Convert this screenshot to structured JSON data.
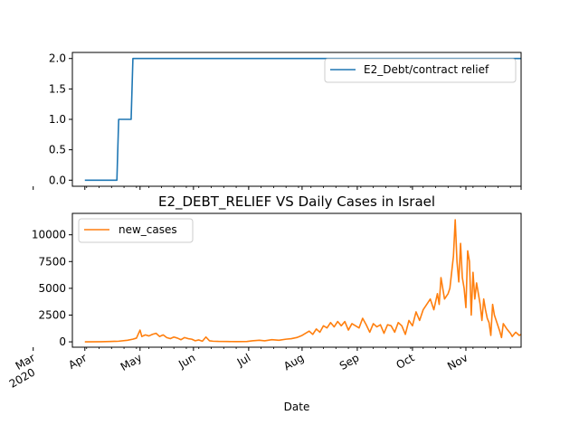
{
  "chart_data": [
    {
      "type": "line",
      "title": "",
      "xlabel": "",
      "ylabel": "",
      "ylim": [
        -0.1,
        2.1
      ],
      "yticks": [
        "0.0",
        "0.5",
        "1.0",
        "1.5",
        "2.0"
      ],
      "series": [
        {
          "name": "E2_Debt/contract relief",
          "color": "#1f77b4",
          "points": [
            [
              "2020-03-01",
              0
            ],
            [
              "2020-03-19",
              0
            ],
            [
              "2020-03-20",
              1
            ],
            [
              "2020-03-27",
              1
            ],
            [
              "2020-03-28",
              2
            ],
            [
              "2020-11-01",
              2
            ]
          ]
        }
      ],
      "legend_position": "top-right",
      "grid": false
    },
    {
      "type": "line",
      "title": "E2_DEBT_RELIEF VS Daily Cases in Israel",
      "xlabel": "Date",
      "ylabel": "",
      "ylim": [
        -500,
        12000
      ],
      "yticks": [
        "0",
        "2500",
        "5000",
        "7500",
        "10000"
      ],
      "xticks": [
        {
          "label": "Mar",
          "sub": "2020"
        },
        {
          "label": "Apr",
          "sub": ""
        },
        {
          "label": "May",
          "sub": ""
        },
        {
          "label": "Jun",
          "sub": ""
        },
        {
          "label": "Jul",
          "sub": ""
        },
        {
          "label": "Aug",
          "sub": ""
        },
        {
          "label": "Sep",
          "sub": ""
        },
        {
          "label": "Oct",
          "sub": ""
        },
        {
          "label": "Nov",
          "sub": ""
        }
      ],
      "series": [
        {
          "name": "new_cases",
          "color": "#ff7f0e",
          "points": [
            [
              "2020-03-01",
              0
            ],
            [
              "2020-03-10",
              10
            ],
            [
              "2020-03-15",
              30
            ],
            [
              "2020-03-20",
              60
            ],
            [
              "2020-03-25",
              150
            ],
            [
              "2020-03-28",
              250
            ],
            [
              "2020-03-30",
              350
            ],
            [
              "2020-04-01",
              1100
            ],
            [
              "2020-04-02",
              500
            ],
            [
              "2020-04-04",
              650
            ],
            [
              "2020-04-06",
              550
            ],
            [
              "2020-04-08",
              700
            ],
            [
              "2020-04-10",
              800
            ],
            [
              "2020-04-12",
              500
            ],
            [
              "2020-04-14",
              650
            ],
            [
              "2020-04-16",
              400
            ],
            [
              "2020-04-18",
              300
            ],
            [
              "2020-04-20",
              450
            ],
            [
              "2020-04-22",
              350
            ],
            [
              "2020-04-24",
              200
            ],
            [
              "2020-04-26",
              400
            ],
            [
              "2020-04-28",
              300
            ],
            [
              "2020-04-30",
              250
            ],
            [
              "2020-05-02",
              100
            ],
            [
              "2020-05-04",
              180
            ],
            [
              "2020-05-06",
              60
            ],
            [
              "2020-05-08",
              450
            ],
            [
              "2020-05-10",
              100
            ],
            [
              "2020-05-12",
              60
            ],
            [
              "2020-05-15",
              40
            ],
            [
              "2020-05-20",
              30
            ],
            [
              "2020-05-25",
              20
            ],
            [
              "2020-05-31",
              30
            ],
            [
              "2020-06-03",
              100
            ],
            [
              "2020-06-07",
              150
            ],
            [
              "2020-06-10",
              100
            ],
            [
              "2020-06-14",
              200
            ],
            [
              "2020-06-18",
              150
            ],
            [
              "2020-06-22",
              250
            ],
            [
              "2020-06-25",
              300
            ],
            [
              "2020-06-28",
              400
            ],
            [
              "2020-07-01",
              600
            ],
            [
              "2020-07-03",
              800
            ],
            [
              "2020-07-05",
              1000
            ],
            [
              "2020-07-07",
              700
            ],
            [
              "2020-07-09",
              1200
            ],
            [
              "2020-07-11",
              900
            ],
            [
              "2020-07-13",
              1500
            ],
            [
              "2020-07-15",
              1300
            ],
            [
              "2020-07-17",
              1800
            ],
            [
              "2020-07-19",
              1400
            ],
            [
              "2020-07-21",
              1900
            ],
            [
              "2020-07-23",
              1500
            ],
            [
              "2020-07-25",
              1900
            ],
            [
              "2020-07-27",
              1100
            ],
            [
              "2020-07-29",
              1700
            ],
            [
              "2020-07-31",
              1500
            ],
            [
              "2020-08-02",
              1300
            ],
            [
              "2020-08-04",
              2200
            ],
            [
              "2020-08-06",
              1600
            ],
            [
              "2020-08-08",
              900
            ],
            [
              "2020-08-10",
              1700
            ],
            [
              "2020-08-12",
              1400
            ],
            [
              "2020-08-14",
              1600
            ],
            [
              "2020-08-16",
              800
            ],
            [
              "2020-08-18",
              1600
            ],
            [
              "2020-08-20",
              1500
            ],
            [
              "2020-08-22",
              900
            ],
            [
              "2020-08-24",
              1800
            ],
            [
              "2020-08-26",
              1500
            ],
            [
              "2020-08-28",
              700
            ],
            [
              "2020-08-30",
              2000
            ],
            [
              "2020-09-01",
              1500
            ],
            [
              "2020-09-03",
              2800
            ],
            [
              "2020-09-05",
              2000
            ],
            [
              "2020-09-07",
              3000
            ],
            [
              "2020-09-09",
              3500
            ],
            [
              "2020-09-11",
              4000
            ],
            [
              "2020-09-13",
              3000
            ],
            [
              "2020-09-15",
              4500
            ],
            [
              "2020-09-16",
              3500
            ],
            [
              "2020-09-17",
              6000
            ],
            [
              "2020-09-19",
              4000
            ],
            [
              "2020-09-21",
              4500
            ],
            [
              "2020-09-22",
              5000
            ],
            [
              "2020-09-24",
              8000
            ],
            [
              "2020-09-25",
              11400
            ],
            [
              "2020-09-26",
              7500
            ],
            [
              "2020-09-27",
              5600
            ],
            [
              "2020-09-28",
              9200
            ],
            [
              "2020-09-29",
              6000
            ],
            [
              "2020-09-30",
              5000
            ],
            [
              "2020-10-01",
              3200
            ],
            [
              "2020-10-02",
              8500
            ],
            [
              "2020-10-03",
              7500
            ],
            [
              "2020-10-04",
              2500
            ],
            [
              "2020-10-05",
              6500
            ],
            [
              "2020-10-06",
              4000
            ],
            [
              "2020-10-07",
              5500
            ],
            [
              "2020-10-08",
              4500
            ],
            [
              "2020-10-09",
              3500
            ],
            [
              "2020-10-10",
              2000
            ],
            [
              "2020-10-11",
              4000
            ],
            [
              "2020-10-12",
              3000
            ],
            [
              "2020-10-13",
              2200
            ],
            [
              "2020-10-14",
              1800
            ],
            [
              "2020-10-15",
              600
            ],
            [
              "2020-10-16",
              3500
            ],
            [
              "2020-10-17",
              2500
            ],
            [
              "2020-10-18",
              2000
            ],
            [
              "2020-10-20",
              1000
            ],
            [
              "2020-10-21",
              400
            ],
            [
              "2020-10-22",
              1700
            ],
            [
              "2020-10-24",
              1200
            ],
            [
              "2020-10-26",
              800
            ],
            [
              "2020-10-27",
              500
            ],
            [
              "2020-10-29",
              900
            ],
            [
              "2020-10-31",
              600
            ],
            [
              "2020-11-01",
              700
            ]
          ]
        }
      ],
      "legend_position": "top-left",
      "grid": false
    }
  ]
}
